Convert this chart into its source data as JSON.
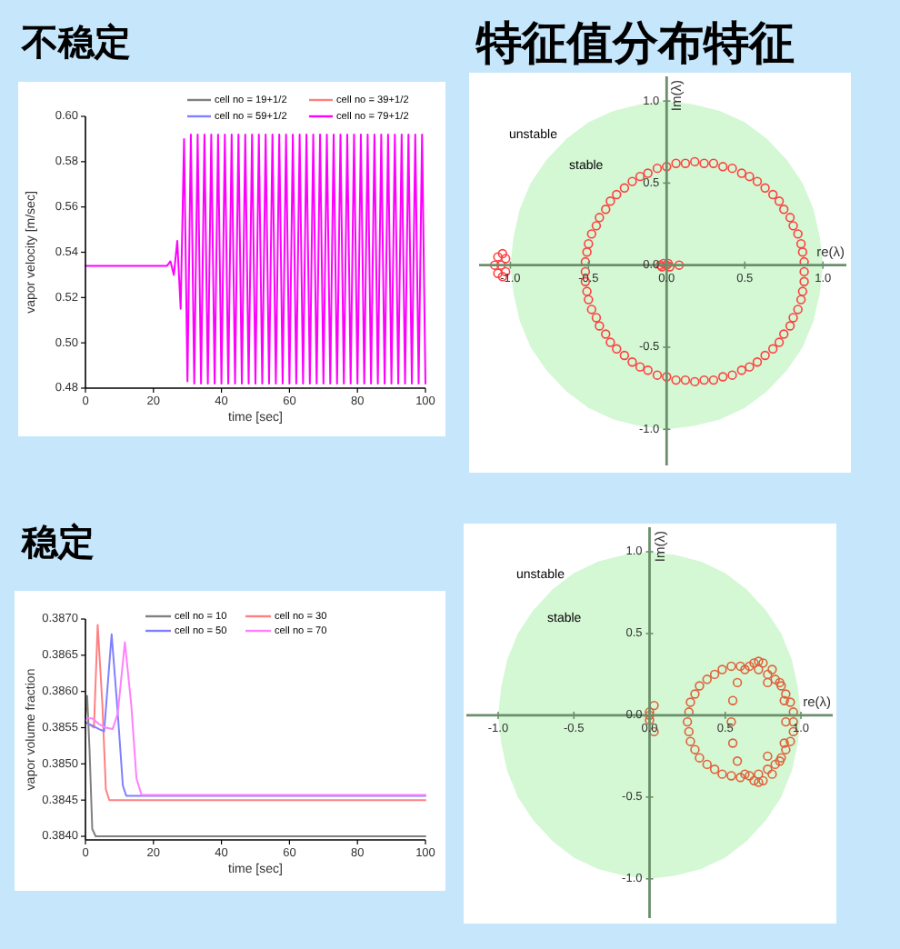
{
  "chart_data": [
    {
      "type": "line",
      "title": "不稳定",
      "xlabel": "time [sec]",
      "ylabel": "vapor velocity [m/sec]",
      "xlim": [
        0,
        100
      ],
      "ylim": [
        0.48,
        0.6
      ],
      "xticks": [
        0,
        20,
        40,
        60,
        80,
        100
      ],
      "yticks": [
        0.48,
        {
          "value": 0.5,
          "label": "0.50"
        },
        0.52,
        0.54,
        0.56,
        0.58,
        {
          "value": 0.6,
          "label": "0.60"
        }
      ],
      "legend": "top",
      "series": [
        {
          "name": "cell no = 19+1/2",
          "color": "#808080"
        },
        {
          "name": "cell no = 39+1/2",
          "color": "#ff8080"
        },
        {
          "name": "cell no = 59+1/2",
          "color": "#8080ff"
        },
        {
          "name": "cell no = 79+1/2",
          "color": "#ff00ff",
          "x": [
            0,
            10,
            20,
            24,
            25,
            26,
            27,
            28,
            29,
            30,
            31,
            32,
            33,
            34,
            35,
            36,
            37,
            38,
            39,
            40,
            41,
            42,
            43,
            44,
            45,
            46,
            47,
            48,
            49,
            50,
            51,
            52,
            53,
            54,
            55,
            56,
            57,
            58,
            59,
            60,
            61,
            62,
            63,
            64,
            65,
            66,
            67,
            68,
            69,
            70,
            71,
            72,
            73,
            74,
            75,
            76,
            77,
            78,
            79,
            80,
            81,
            82,
            83,
            84,
            85,
            86,
            87,
            88,
            89,
            90,
            91,
            92,
            93,
            94,
            95,
            96,
            97,
            98,
            99,
            100
          ],
          "values": [
            0.534,
            0.534,
            0.534,
            0.534,
            0.536,
            0.53,
            0.545,
            0.515,
            0.59,
            0.483,
            0.592,
            0.482,
            0.592,
            0.482,
            0.592,
            0.482,
            0.592,
            0.482,
            0.592,
            0.482,
            0.592,
            0.482,
            0.592,
            0.482,
            0.592,
            0.482,
            0.592,
            0.482,
            0.592,
            0.482,
            0.592,
            0.482,
            0.592,
            0.482,
            0.592,
            0.482,
            0.592,
            0.482,
            0.592,
            0.482,
            0.592,
            0.482,
            0.592,
            0.482,
            0.592,
            0.482,
            0.592,
            0.482,
            0.592,
            0.482,
            0.592,
            0.482,
            0.592,
            0.482,
            0.592,
            0.482,
            0.592,
            0.482,
            0.592,
            0.482,
            0.592,
            0.482,
            0.592,
            0.482,
            0.592,
            0.482,
            0.592,
            0.482,
            0.592,
            0.482,
            0.592,
            0.482,
            0.592,
            0.482,
            0.592,
            0.482,
            0.592,
            0.482,
            0.592,
            0.482
          ]
        }
      ]
    },
    {
      "type": "scatter",
      "title": "特征值分布特征",
      "xlabel": "re(λ)",
      "ylabel": "Im(λ)",
      "xlim": [
        -1.2,
        1.15
      ],
      "ylim": [
        -1.22,
        1.15
      ],
      "xticks": [
        {
          "value": -1,
          "label": "-1.0"
        },
        -0.5,
        {
          "value": 0,
          "label": "0.0"
        },
        0.5,
        {
          "value": 1,
          "label": "1.0"
        }
      ],
      "yticks": [
        {
          "value": -1,
          "label": "-1.0"
        },
        -0.5,
        {
          "value": 0,
          "label": "0.0"
        },
        0.5,
        {
          "value": 1,
          "label": "1.0"
        }
      ],
      "annotations": [
        "unstable",
        "stable"
      ],
      "series": [
        {
          "type": "area",
          "color": "#d4f7d4",
          "x": [
            1,
            0.98,
            0.94,
            0.87,
            0.77,
            0.64,
            0.5,
            0.34,
            0.17,
            0,
            -0.17,
            -0.34,
            -0.5,
            -0.64,
            -0.77,
            -0.87,
            -0.94,
            -0.98,
            -1,
            -0.98,
            -0.94,
            -0.87,
            -0.77,
            -0.64,
            -0.5,
            -0.34,
            -0.17,
            0,
            0.17,
            0.34,
            0.5,
            0.64,
            0.77,
            0.87,
            0.94,
            0.98
          ],
          "values": [
            0,
            0.17,
            0.34,
            0.5,
            0.64,
            0.77,
            0.87,
            0.94,
            0.98,
            1,
            0.98,
            0.94,
            0.87,
            0.77,
            0.64,
            0.5,
            0.34,
            0.17,
            0,
            -0.17,
            -0.34,
            -0.5,
            -0.64,
            -0.77,
            -0.87,
            -0.94,
            -0.98,
            -1,
            -0.98,
            -0.94,
            -0.87,
            -0.77,
            -0.64,
            -0.5,
            -0.34,
            -0.17
          ]
        },
        {
          "color": "#ff4040",
          "marker": "circle",
          "x": [
            0.88,
            0.88,
            0.87,
            0.86,
            0.84,
            0.81,
            0.79,
            0.75,
            0.72,
            0.68,
            0.63,
            0.58,
            0.53,
            0.48,
            0.42,
            0.36,
            0.3,
            0.24,
            0.18,
            0.12,
            0.06,
            0,
            -0.06,
            -0.12,
            -0.17,
            -0.22,
            -0.27,
            -0.32,
            -0.36,
            -0.39,
            -0.43,
            -0.45,
            -0.48,
            -0.5,
            -0.51,
            -0.52,
            -0.52,
            -0.52,
            -0.51,
            -0.5,
            -0.48,
            -0.45,
            -0.43,
            -0.39,
            -0.36,
            -0.32,
            -0.27,
            -0.22,
            -0.17,
            -0.12,
            -0.06,
            0,
            0.06,
            0.12,
            0.18,
            0.24,
            0.3,
            0.36,
            0.42,
            0.48,
            0.53,
            0.58,
            0.63,
            0.68,
            0.72,
            0.75,
            0.79,
            0.81,
            0.84,
            0.86,
            0.87,
            0.88,
            -1.05,
            -1.08,
            -1.1,
            -1.08,
            -1.05,
            -1.03,
            -1.03,
            -1.06,
            -0.04,
            -0.02,
            0,
            0.02,
            -0.03,
            0.01,
            0.08
          ],
          "values": [
            -0.04,
            0.02,
            0.08,
            0.13,
            0.19,
            0.24,
            0.29,
            0.34,
            0.39,
            0.43,
            0.47,
            0.51,
            0.54,
            0.56,
            0.59,
            0.6,
            0.62,
            0.62,
            0.63,
            0.62,
            0.62,
            0.6,
            0.59,
            0.56,
            0.54,
            0.51,
            0.47,
            0.43,
            0.39,
            0.34,
            0.29,
            0.24,
            0.19,
            0.13,
            0.08,
            0.02,
            -0.04,
            -0.1,
            -0.16,
            -0.21,
            -0.27,
            -0.32,
            -0.37,
            -0.42,
            -0.47,
            -0.51,
            -0.55,
            -0.59,
            -0.62,
            -0.64,
            -0.67,
            -0.68,
            -0.7,
            -0.7,
            -0.71,
            -0.7,
            -0.7,
            -0.68,
            -0.67,
            -0.64,
            -0.62,
            -0.59,
            -0.55,
            -0.51,
            -0.47,
            -0.42,
            -0.37,
            -0.32,
            -0.27,
            -0.21,
            -0.16,
            -0.1,
            0.07,
            0.05,
            0,
            -0.05,
            -0.07,
            -0.04,
            0.04,
            0,
            0,
            0.01,
            0,
            -0.01,
            -0.01,
            0.01,
            0
          ]
        }
      ]
    },
    {
      "type": "line",
      "title": "稳定",
      "xlabel": "time [sec]",
      "ylabel": "vapor volume fraction",
      "xlim": [
        0,
        100
      ],
      "ylim": [
        0.38395,
        0.387
      ],
      "xticks": [
        0,
        20,
        40,
        60,
        80,
        100
      ],
      "yticks": [
        {
          "value": 0.384,
          "label": "0.3840"
        },
        0.3845,
        {
          "value": 0.385,
          "label": "0.3850"
        },
        0.3855,
        {
          "value": 0.386,
          "label": "0.3860"
        },
        0.3865,
        {
          "value": 0.387,
          "label": "0.3870"
        }
      ],
      "legend": "top",
      "series": [
        {
          "name": "cell no = 10",
          "color": "#808080",
          "x": [
            0,
            0.5,
            1.2,
            2,
            3,
            100
          ],
          "values": [
            0.38565,
            0.38594,
            0.3852,
            0.3841,
            0.384,
            0.384
          ]
        },
        {
          "name": "cell no = 30",
          "color": "#ff8080",
          "x": [
            0,
            1,
            2.5,
            3.6,
            5,
            6,
            7,
            100
          ],
          "values": [
            0.38558,
            0.38555,
            0.3855,
            0.38692,
            0.3858,
            0.38465,
            0.3845,
            0.3845
          ]
        },
        {
          "name": "cell no = 50",
          "color": "#8080ff",
          "x": [
            0,
            2,
            4,
            5.5,
            7.7,
            9.5,
            11,
            12,
            100
          ],
          "values": [
            0.38557,
            0.38553,
            0.38548,
            0.38545,
            0.38679,
            0.3857,
            0.3847,
            0.38456,
            0.38456
          ]
        },
        {
          "name": "cell no = 70",
          "color": "#ff80ff",
          "x": [
            0,
            2,
            4,
            6,
            8,
            9.5,
            11.6,
            13.5,
            15,
            16.5,
            100
          ],
          "values": [
            0.38563,
            0.38563,
            0.38555,
            0.3855,
            0.38548,
            0.3857,
            0.38668,
            0.3858,
            0.3848,
            0.38457,
            0.38457
          ]
        }
      ]
    },
    {
      "type": "scatter",
      "xlabel": "re(λ)",
      "ylabel": "Im(λ)",
      "xlim": [
        -1.21,
        1.21
      ],
      "ylim": [
        -1.24,
        1.15
      ],
      "xticks": [
        {
          "value": -1,
          "label": "-1.0"
        },
        -0.5,
        {
          "value": 0,
          "label": "0.0"
        },
        0.5,
        {
          "value": 1,
          "label": "1.0"
        }
      ],
      "yticks": [
        {
          "value": -1,
          "label": "-1.0"
        },
        -0.5,
        {
          "value": 0,
          "label": "0.0"
        },
        0.5,
        {
          "value": 1,
          "label": "1.0"
        }
      ],
      "annotations": [
        "unstable",
        "stable"
      ],
      "series": [
        {
          "type": "area",
          "color": "#d4f7d4",
          "x": [
            1,
            0.98,
            0.94,
            0.87,
            0.77,
            0.64,
            0.5,
            0.34,
            0.17,
            0,
            -0.17,
            -0.34,
            -0.5,
            -0.64,
            -0.77,
            -0.87,
            -0.94,
            -0.98,
            -1,
            -0.98,
            -0.94,
            -0.87,
            -0.77,
            -0.64,
            -0.5,
            -0.34,
            -0.17,
            0,
            0.17,
            0.34,
            0.5,
            0.64,
            0.77,
            0.87,
            0.94,
            0.98
          ],
          "values": [
            0,
            0.17,
            0.34,
            0.5,
            0.64,
            0.77,
            0.87,
            0.94,
            0.98,
            1,
            0.98,
            0.94,
            0.87,
            0.77,
            0.64,
            0.5,
            0.34,
            0.17,
            0,
            -0.17,
            -0.34,
            -0.5,
            -0.64,
            -0.77,
            -0.87,
            -0.94,
            -0.98,
            -1,
            -0.98,
            -0.94,
            -0.87,
            -0.77,
            -0.64,
            -0.5,
            -0.34,
            -0.17
          ]
        },
        {
          "color": "#e0603a",
          "marker": "circle",
          "x": [
            0.95,
            0.95,
            0.93,
            0.9,
            0.87,
            0.83,
            0.78,
            0.72,
            0.66,
            0.6,
            0.54,
            0.48,
            0.43,
            0.38,
            0.33,
            0.3,
            0.27,
            0.26,
            0.25,
            0.26,
            0.27,
            0.3,
            0.33,
            0.38,
            0.43,
            0.48,
            0.54,
            0.6,
            0.66,
            0.72,
            0.78,
            0.83,
            0.87,
            0.9,
            0.93,
            0.95,
            0.9,
            0.89,
            0.86,
            0.81,
            0.75,
            0.72,
            0.69,
            0.63,
            0.58,
            0.55,
            0.54,
            0.55,
            0.58,
            0.63,
            0.69,
            0.72,
            0.75,
            0.81,
            0.86,
            0.89,
            0.03,
            0.03,
            0,
            0,
            0,
            0.78,
            0.78
          ],
          "values": [
            -0.04,
            0.02,
            0.08,
            0.13,
            0.18,
            0.22,
            0.25,
            0.28,
            0.3,
            0.3,
            0.3,
            0.28,
            0.25,
            0.22,
            0.18,
            0.13,
            0.08,
            0.02,
            -0.04,
            -0.1,
            -0.16,
            -0.21,
            -0.26,
            -0.3,
            -0.33,
            -0.36,
            -0.37,
            -0.38,
            -0.37,
            -0.36,
            -0.33,
            -0.3,
            -0.26,
            -0.21,
            -0.16,
            -0.1,
            -0.04,
            0.09,
            0.2,
            0.28,
            0.32,
            0.33,
            0.32,
            0.28,
            0.2,
            0.09,
            -0.04,
            -0.17,
            -0.28,
            -0.36,
            -0.4,
            -0.41,
            -0.4,
            -0.36,
            -0.28,
            -0.17,
            0.06,
            -0.1,
            0,
            -0.03,
            0.02,
            0.2,
            -0.25
          ]
        }
      ]
    }
  ]
}
